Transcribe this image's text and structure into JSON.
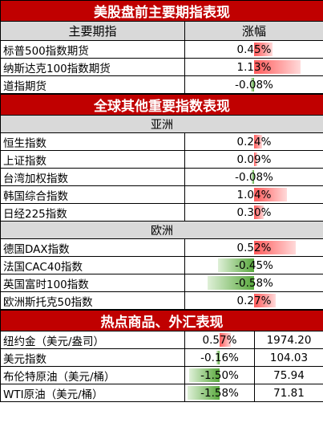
{
  "sections": {
    "us": {
      "title": "美股盘前主要期指表现",
      "col_name": "主要期指",
      "col_change": "涨幅",
      "rows": [
        {
          "name": "标普500指数期货",
          "change": "0.45%",
          "value": 0.45
        },
        {
          "name": "纳斯达克100指数期货",
          "change": "1.13%",
          "value": 1.13
        },
        {
          "name": "道指期货",
          "change": "-0.08%",
          "value": -0.08
        }
      ]
    },
    "global": {
      "title": "全球其他重要指数表现",
      "asia_label": "亚洲",
      "asia_rows": [
        {
          "name": "恒生指数",
          "change": "0.24%",
          "value": 0.24
        },
        {
          "name": "上证指数",
          "change": "0.09%",
          "value": 0.09
        },
        {
          "name": "台湾加权指数",
          "change": "-0.08%",
          "value": -0.08
        },
        {
          "name": "韩国综合指数",
          "change": "1.04%",
          "value": 1.04
        },
        {
          "name": "日经225指数",
          "change": "0.30%",
          "value": 0.3
        }
      ],
      "europe_label": "欧洲",
      "europe_rows": [
        {
          "name": "德国DAX指数",
          "change": "0.52%",
          "value": 0.52
        },
        {
          "name": "法国CAC40指数",
          "change": "-0.45%",
          "value": -0.45
        },
        {
          "name": "英国富时100指数",
          "change": "-0.58%",
          "value": -0.58
        },
        {
          "name": "欧洲斯托克50指数",
          "change": "0.27%",
          "value": 0.27
        }
      ]
    },
    "commodities": {
      "title": "热点商品、外汇表现",
      "rows": [
        {
          "name": "纽约金（美元/盎司）",
          "change": "0.57%",
          "value": 0.57,
          "price": "1974.20"
        },
        {
          "name": "美元指数",
          "change": "-0.16%",
          "value": -0.16,
          "price": "104.03"
        },
        {
          "name": "布伦特原油（美元/桶）",
          "change": "-1.50%",
          "value": -1.5,
          "price": "75.94"
        },
        {
          "name": "WTI原油（美元/桶）",
          "change": "-1.58%",
          "value": -1.58,
          "price": "71.81"
        }
      ]
    }
  },
  "colors": {
    "banner": "#c00000",
    "positive": "#ff5a5a",
    "negative": "#59a93d",
    "header_bg": "#d9d9d9"
  }
}
